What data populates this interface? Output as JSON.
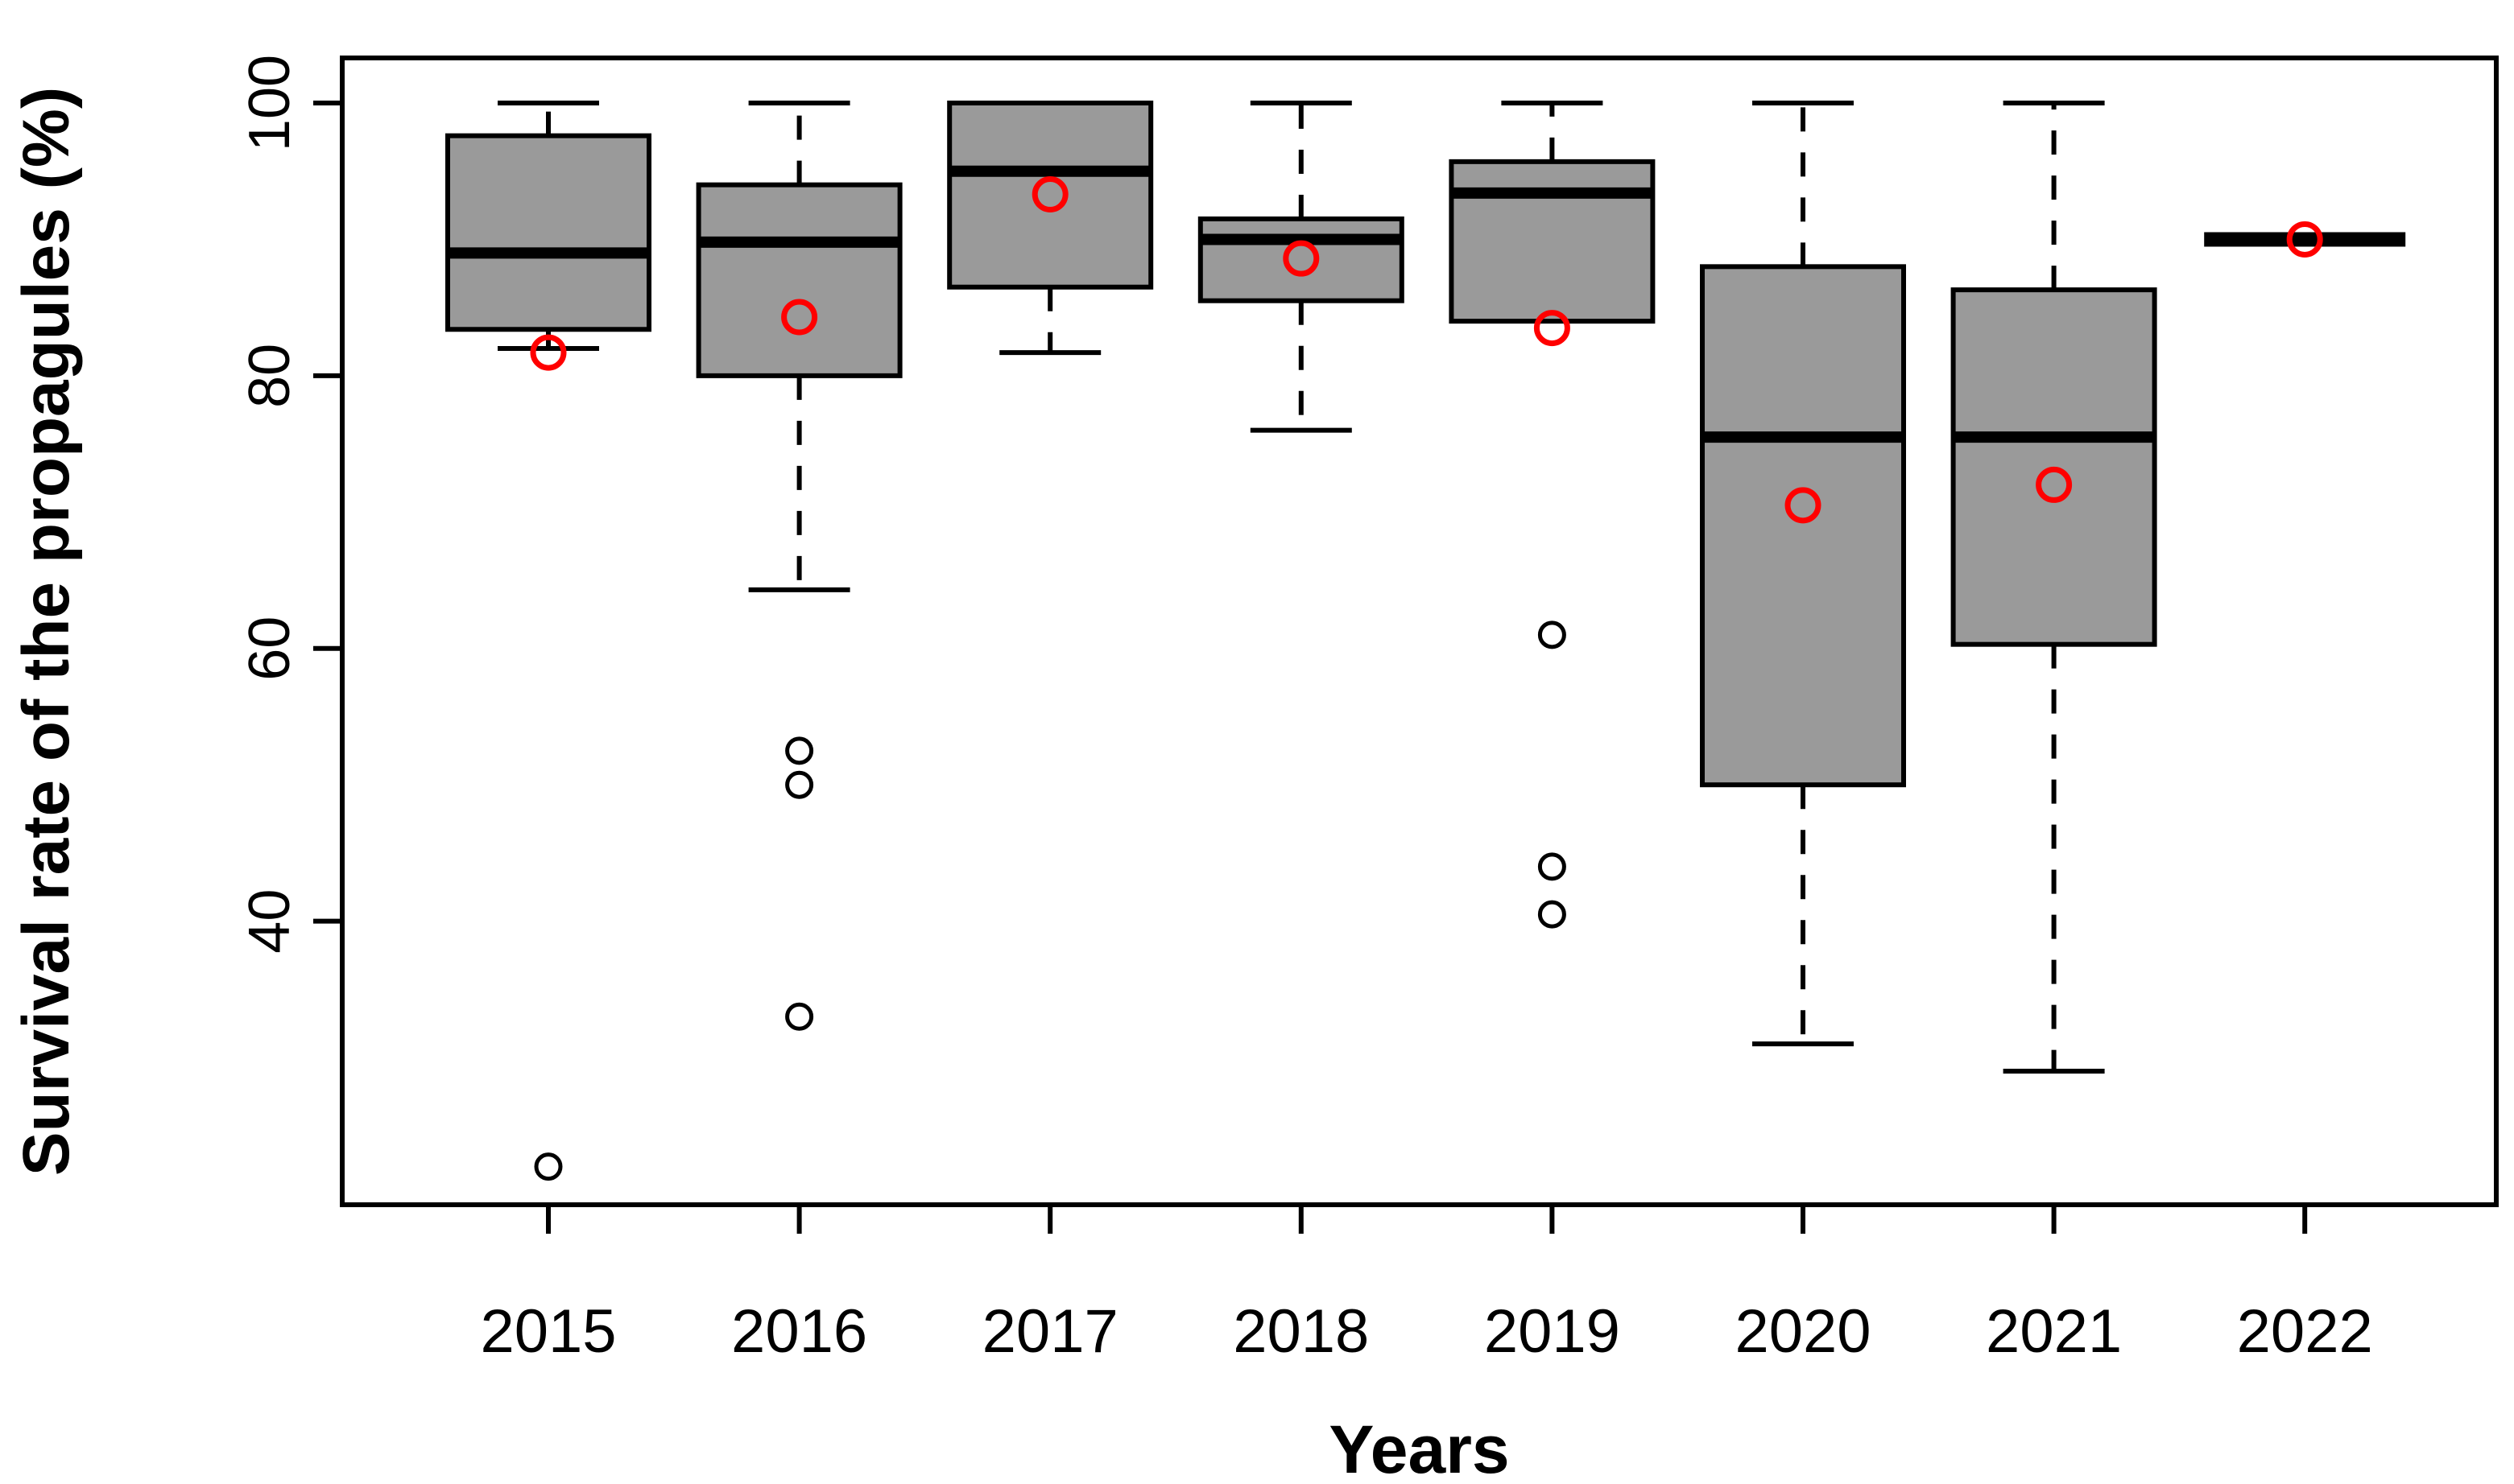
{
  "figure": {
    "ylabel": "Survival rate of the propagules (%)",
    "xlabel": "Years"
  },
  "chart_data": {
    "type": "boxplot",
    "title": "",
    "xlabel": "Years",
    "ylabel": "Survival rate of the propagules (%)",
    "categories": [
      "2015",
      "2016",
      "2017",
      "2018",
      "2019",
      "2020",
      "2021",
      "2022"
    ],
    "yticks": [
      40,
      60,
      80,
      100
    ],
    "ylim": [
      19.2,
      103.3
    ],
    "grid": false,
    "legend": null,
    "colors": {
      "box_fill": "#9a9a9a",
      "box_stroke": "#000000",
      "median_color": "#000000",
      "mean_marker": "#ff0000",
      "outlier_stroke": "#000000",
      "axis_color": "#000000"
    },
    "series": [
      {
        "category": "2015",
        "whisker_low": 82,
        "q1": 83.4,
        "median": 89,
        "q3": 97.6,
        "whisker_high": 100,
        "mean": 81.7,
        "outliers": [
          22
        ]
      },
      {
        "category": "2016",
        "whisker_low": 64.3,
        "q1": 80,
        "median": 89.8,
        "q3": 94,
        "whisker_high": 100,
        "mean": 84.3,
        "outliers": [
          52.5,
          50,
          33
        ]
      },
      {
        "category": "2017",
        "whisker_low": 81.7,
        "q1": 86.5,
        "median": 95,
        "q3": 100,
        "whisker_high": null,
        "mean": 93.3,
        "outliers": []
      },
      {
        "category": "2018",
        "whisker_low": 76,
        "q1": 85.5,
        "median": 90,
        "q3": 91.5,
        "whisker_high": 100,
        "mean": 88.6,
        "outliers": []
      },
      {
        "category": "2019",
        "whisker_low": null,
        "q1": 84,
        "median": 93.4,
        "q3": 95.7,
        "whisker_high": 100,
        "mean": 83.5,
        "outliers": [
          61,
          44,
          40.5
        ]
      },
      {
        "category": "2020",
        "whisker_low": 31,
        "q1": 50,
        "median": 75.5,
        "q3": 88,
        "whisker_high": 100,
        "mean": 70.5,
        "outliers": []
      },
      {
        "category": "2021",
        "whisker_low": 29,
        "q1": 60.3,
        "median": 75.5,
        "q3": 86.3,
        "whisker_high": 100,
        "mean": 72,
        "outliers": []
      },
      {
        "category": "2022",
        "whisker_low": null,
        "q1": 90,
        "median": 90,
        "q3": 90,
        "whisker_high": null,
        "mean": 90,
        "outliers": []
      }
    ]
  }
}
